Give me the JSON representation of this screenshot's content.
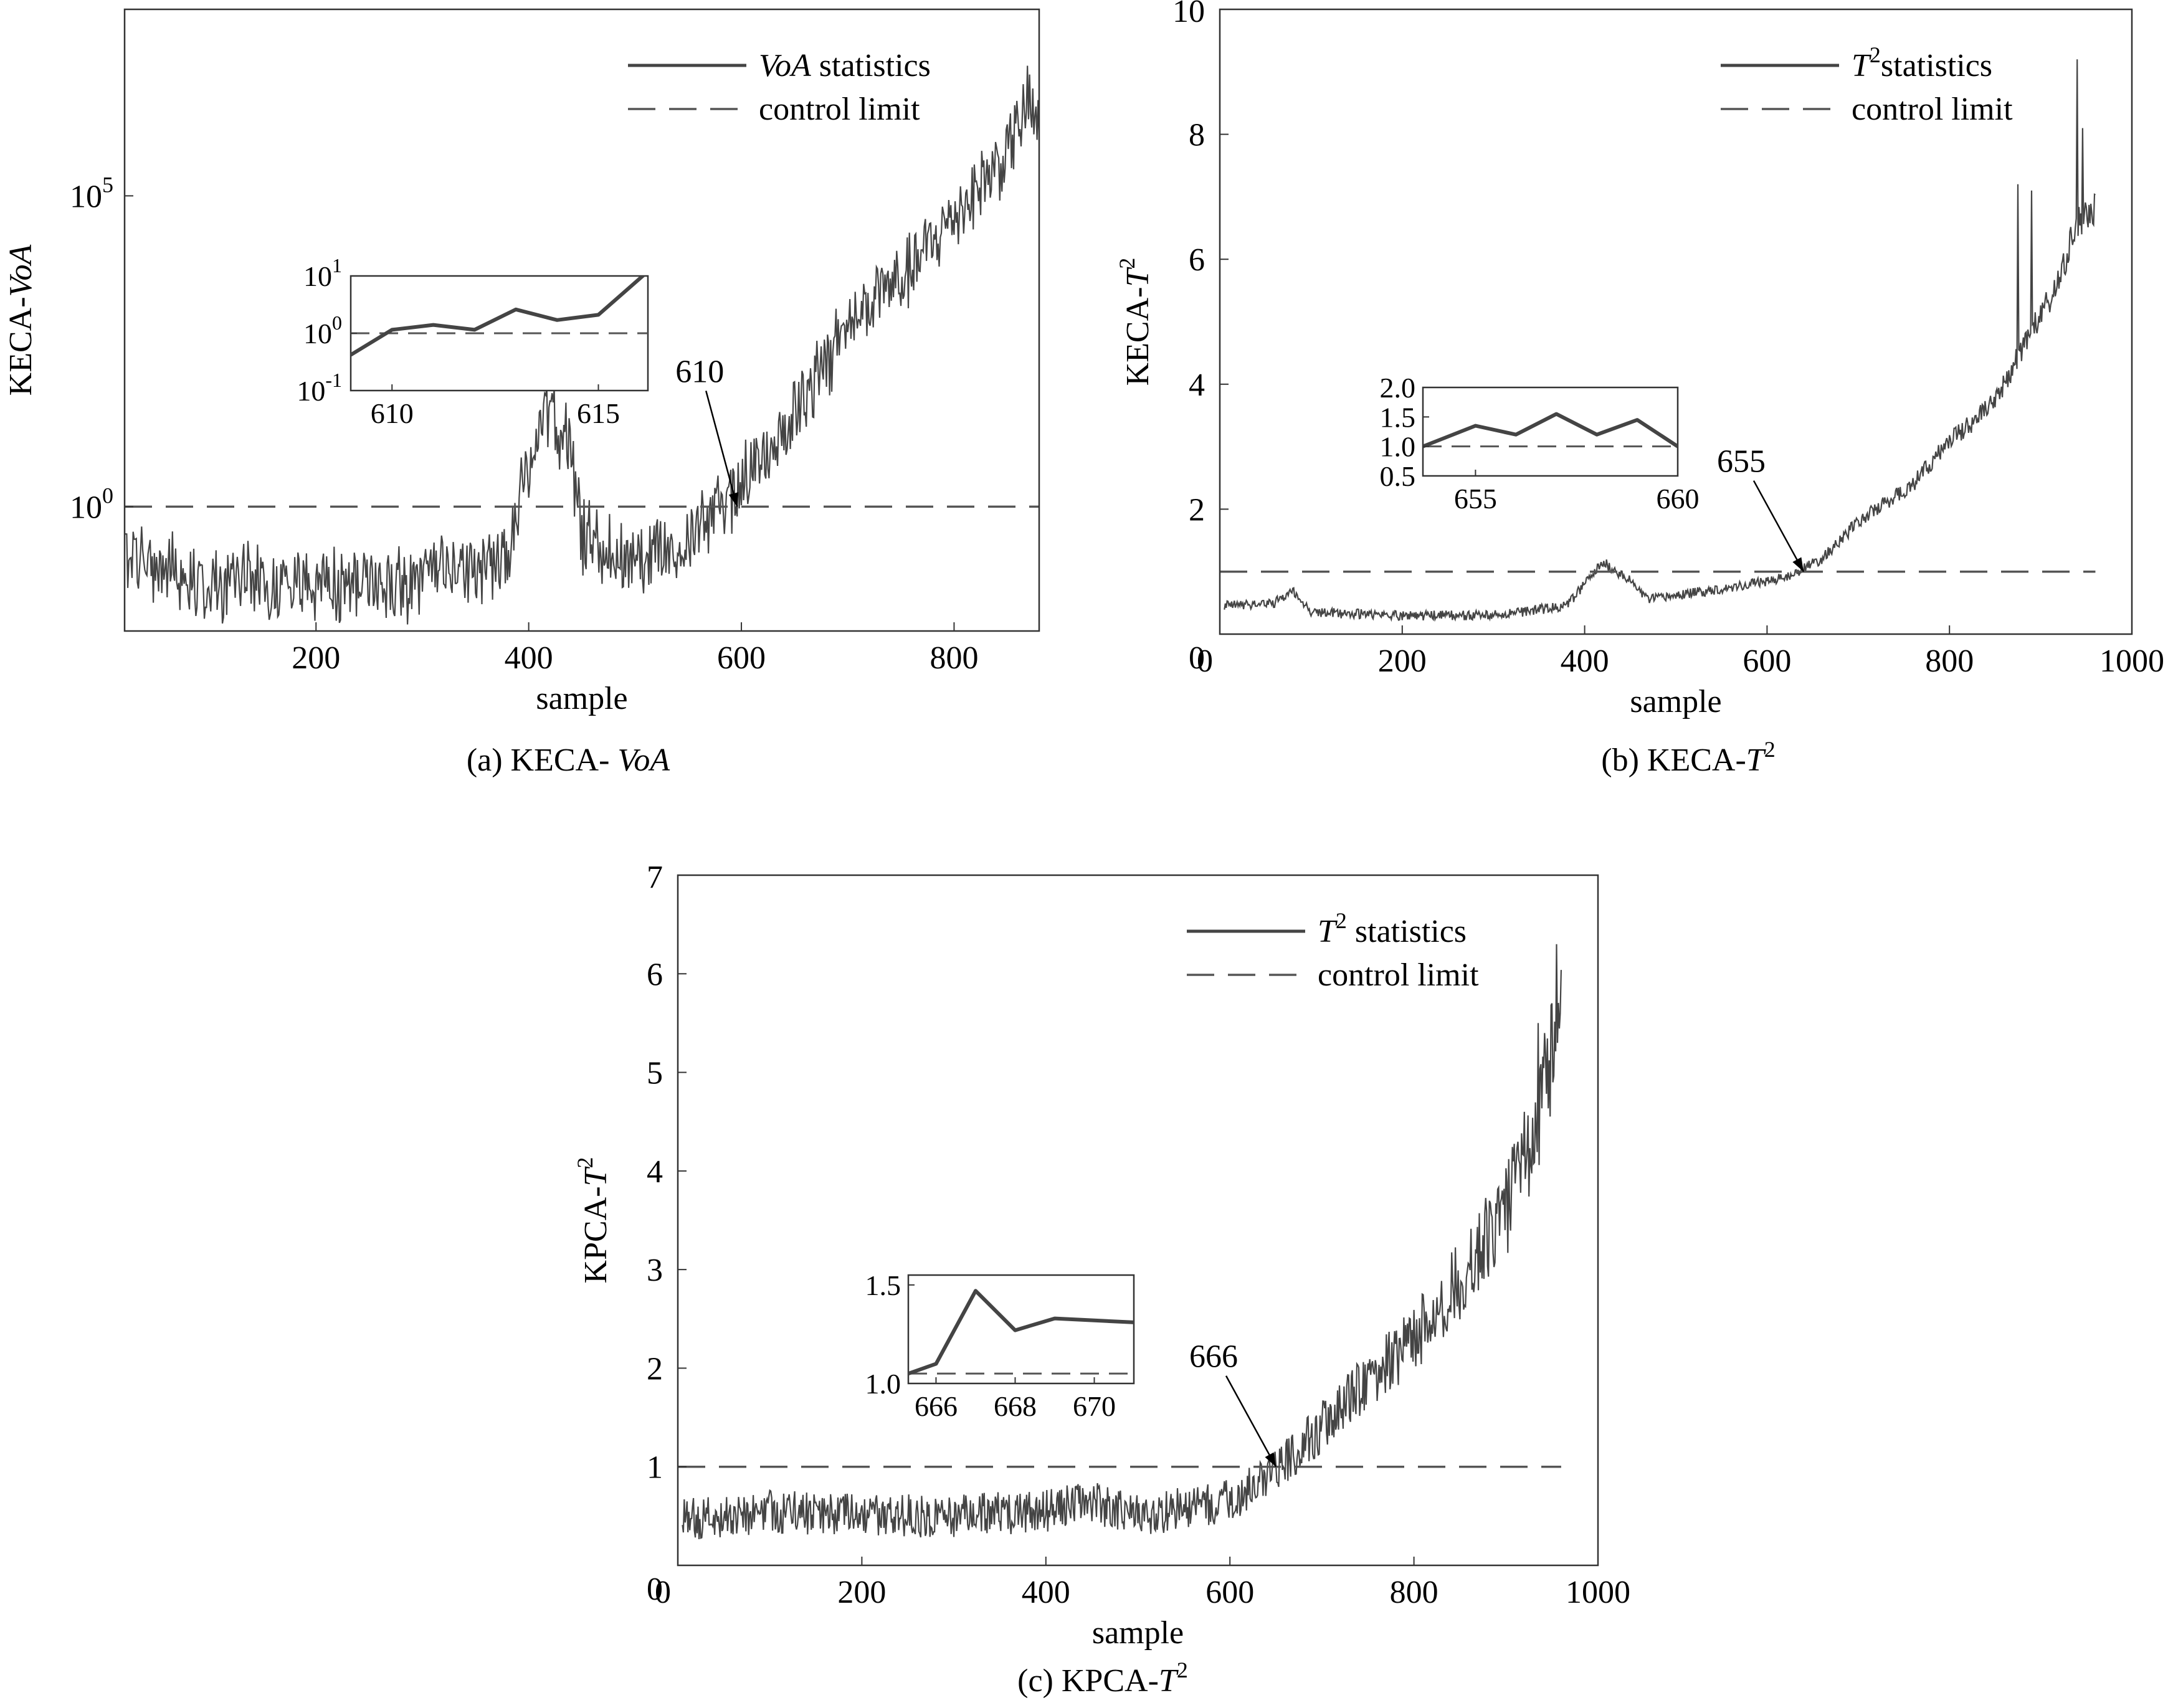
{
  "chart_data": [
    {
      "id": "a",
      "type": "line",
      "caption": "(a) KECA- VoA",
      "caption_prefix": "(a) KECA- ",
      "caption_italic": "VoA",
      "xlabel": "sample",
      "ylabel_prefix": "KECA-",
      "ylabel_italic": "VoA",
      "y_scale": "log",
      "xlim": [
        20,
        880
      ],
      "ylim_log10": [
        -2,
        8
      ],
      "x_ticks": [
        200,
        400,
        600,
        800
      ],
      "y_ticks": [
        {
          "exp": 0,
          "label": "10",
          "sup": "0"
        },
        {
          "exp": 5,
          "label": "10",
          "sup": "5"
        }
      ],
      "legend": {
        "placement": "top-right",
        "series_label_italic": "VoA",
        "series_label_rest": " statistics",
        "limit_label": "control limit"
      },
      "control_limit": 1,
      "series": {
        "description": "VoA statistics (log10 values)",
        "profile": [
          [
            20,
            -0.8
          ],
          [
            100,
            -1.2
          ],
          [
            200,
            -1.3
          ],
          [
            300,
            -1.2
          ],
          [
            380,
            -0.8
          ],
          [
            400,
            0.7
          ],
          [
            420,
            1.5
          ],
          [
            440,
            0.9
          ],
          [
            450,
            -0.5
          ],
          [
            500,
            -0.9
          ],
          [
            560,
            -0.4
          ],
          [
            600,
            0.4
          ],
          [
            640,
            1.2
          ],
          [
            700,
            2.9
          ],
          [
            760,
            3.8
          ],
          [
            800,
            4.7
          ],
          [
            850,
            5.7
          ],
          [
            870,
            6.5
          ],
          [
            880,
            6.0
          ]
        ],
        "noise_log10": 0.7
      },
      "annotation": {
        "label": "610",
        "x": 596,
        "y_log10": 0
      },
      "inset": {
        "xlim": [
          609,
          616.2
        ],
        "x_ticks": [
          610,
          615
        ],
        "y_scale": "log",
        "ylim_log10": [
          -1,
          1
        ],
        "y_ticks": [
          {
            "exp": 1,
            "label": "10",
            "sup": "1"
          },
          {
            "exp": 0,
            "label": "10",
            "sup": "0"
          },
          {
            "exp": -1,
            "label": "10",
            "sup": "-1"
          }
        ],
        "control_limit": 1,
        "points": [
          [
            609,
            0.42
          ],
          [
            610,
            1.15
          ],
          [
            611,
            1.4
          ],
          [
            612,
            1.15
          ],
          [
            613,
            2.6
          ],
          [
            614,
            1.7
          ],
          [
            615,
            2.1
          ],
          [
            616.2,
            12
          ]
        ]
      }
    },
    {
      "id": "b",
      "type": "line",
      "caption": "(b) KECA-T2",
      "caption_prefix": "(b) KECA-",
      "caption_italic": "T",
      "caption_sup": "2",
      "xlabel": "sample",
      "ylabel_prefix": "KECA-",
      "ylabel_italic": "T",
      "ylabel_sup": "2",
      "y_scale": "linear",
      "xlim": [
        0,
        1000
      ],
      "ylim": [
        0,
        10
      ],
      "x_ticks": [
        0,
        200,
        400,
        600,
        800,
        1000
      ],
      "y_ticks": [
        0,
        2,
        4,
        6,
        8,
        10
      ],
      "legend": {
        "placement": "top-right",
        "series_label_italic": "T",
        "series_label_sup": "2",
        "series_label_rest": "statistics",
        "limit_label": "control limit"
      },
      "control_limit": 1,
      "series": {
        "description": "T2 statistics",
        "profile": [
          [
            5,
            0.45
          ],
          [
            60,
            0.5
          ],
          [
            80,
            0.7
          ],
          [
            100,
            0.35
          ],
          [
            200,
            0.3
          ],
          [
            300,
            0.3
          ],
          [
            380,
            0.45
          ],
          [
            420,
            1.15
          ],
          [
            450,
            0.85
          ],
          [
            470,
            0.55
          ],
          [
            560,
            0.75
          ],
          [
            620,
            0.9
          ],
          [
            660,
            1.2
          ],
          [
            700,
            1.8
          ],
          [
            760,
            2.4
          ],
          [
            800,
            3.1
          ],
          [
            850,
            3.7
          ],
          [
            880,
            4.6
          ],
          [
            920,
            5.6
          ],
          [
            940,
            6.6
          ],
          [
            960,
            6.8
          ]
        ],
        "noise": 0.08
      },
      "spikes": [
        [
          875,
          7.2
        ],
        [
          890,
          7.1
        ],
        [
          940,
          9.2
        ],
        [
          946,
          8.1
        ]
      ],
      "annotation": {
        "label": "655",
        "x": 640,
        "y": 1.0
      },
      "inset": {
        "xlim": [
          653.7,
          660
        ],
        "x_ticks": [
          655,
          660
        ],
        "ylim": [
          0.5,
          2.0
        ],
        "y_ticks": [
          "0.5",
          "1.0",
          "1.5",
          "2.0"
        ],
        "y_tick_values": [
          0.5,
          1.0,
          1.5,
          2.0
        ],
        "control_limit": 1.0,
        "points": [
          [
            653.7,
            1.0
          ],
          [
            655,
            1.35
          ],
          [
            656,
            1.2
          ],
          [
            657,
            1.55
          ],
          [
            658,
            1.2
          ],
          [
            659,
            1.45
          ],
          [
            660,
            1.0
          ]
        ]
      }
    },
    {
      "id": "c",
      "type": "line",
      "caption": "(c) KPCA-T2",
      "caption_prefix": "(c) KPCA-",
      "caption_italic": "T",
      "caption_sup": "2",
      "xlabel": "sample",
      "ylabel_prefix": "KPCA-",
      "ylabel_italic": "T",
      "ylabel_sup": "2",
      "y_scale": "linear",
      "xlim": [
        0,
        1000
      ],
      "ylim": [
        0,
        7
      ],
      "x_ticks": [
        0,
        200,
        400,
        600,
        800,
        1000
      ],
      "y_ticks": [
        0,
        1,
        2,
        3,
        4,
        5,
        6,
        7
      ],
      "legend": {
        "placement": "top-right",
        "series_label_italic": "T",
        "series_label_sup": "2",
        "series_label_rest": " statistics",
        "limit_label": "control limit"
      },
      "control_limit": 1,
      "series": {
        "description": "T2 statistics",
        "profile": [
          [
            5,
            0.45
          ],
          [
            100,
            0.55
          ],
          [
            200,
            0.5
          ],
          [
            300,
            0.5
          ],
          [
            400,
            0.55
          ],
          [
            450,
            0.65
          ],
          [
            500,
            0.5
          ],
          [
            600,
            0.65
          ],
          [
            650,
            0.95
          ],
          [
            700,
            1.4
          ],
          [
            750,
            1.9
          ],
          [
            800,
            2.3
          ],
          [
            850,
            2.9
          ],
          [
            900,
            3.6
          ],
          [
            930,
            4.3
          ],
          [
            955,
            5.4
          ]
        ],
        "noise": 0.22
      },
      "spikes": [
        [
          955,
          6.3
        ],
        [
          950,
          5.7
        ],
        [
          935,
          5.5
        ],
        [
          920,
          4.6
        ]
      ],
      "annotation": {
        "label": "666",
        "x": 650,
        "y": 1.0
      },
      "inset": {
        "xlim": [
          665.3,
          671
        ],
        "x_ticks": [
          666,
          668,
          670
        ],
        "ylim": [
          1.0,
          1.55
        ],
        "y_ticks": [
          "1.0",
          "1.5"
        ],
        "y_tick_values": [
          1.0,
          1.5
        ],
        "control_limit": 1.05,
        "points": [
          [
            665.3,
            1.05
          ],
          [
            666,
            1.1
          ],
          [
            667,
            1.47
          ],
          [
            668,
            1.27
          ],
          [
            669,
            1.33
          ],
          [
            670,
            1.32
          ],
          [
            671,
            1.31
          ]
        ]
      }
    }
  ]
}
